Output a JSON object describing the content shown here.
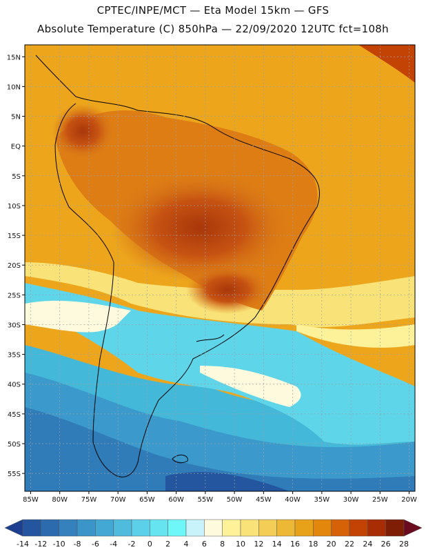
{
  "header": {
    "title_line1": "CPTEC/INPE/MCT  —   Eta Model 15km — GFS",
    "title_line2": "Absolute Temperature (C) 850hPa — 22/09/2020 12UTC fct=108h"
  },
  "map": {
    "lon_ticks": [
      "85W",
      "80W",
      "75W",
      "70W",
      "65W",
      "60W",
      "55W",
      "50W",
      "45W",
      "40W",
      "35W",
      "30W",
      "25W",
      "20W"
    ],
    "lat_ticks": [
      "15N",
      "10N",
      "5N",
      "EQ",
      "5S",
      "10S",
      "15S",
      "20S",
      "25S",
      "30S",
      "35S",
      "40S",
      "45S",
      "50S",
      "55S"
    ],
    "lon_range": [
      -86,
      -19
    ],
    "lat_range": [
      17,
      -58
    ],
    "gridlines": true
  },
  "colorbar": {
    "labels": [
      "-14",
      "-12",
      "-10",
      "-8",
      "-6",
      "-4",
      "-2",
      "0",
      "2",
      "4",
      "6",
      "8",
      "10",
      "12",
      "14",
      "16",
      "18",
      "20",
      "22",
      "24",
      "26",
      "28"
    ],
    "colors": [
      "#1c3f8f",
      "#2456a0",
      "#2c6cae",
      "#3481bd",
      "#3b95c8",
      "#44a8d4",
      "#4fbcdd",
      "#5bd0e8",
      "#66e4f0",
      "#6ff7f8",
      "#c9f3fb",
      "#fefadd",
      "#fdf29a",
      "#f9e277",
      "#f3cd55",
      "#edb835",
      "#e8a21a",
      "#e2860c",
      "#d56207",
      "#c34304",
      "#a82d05",
      "#7e1e05",
      "#6b0b20"
    ]
  }
}
